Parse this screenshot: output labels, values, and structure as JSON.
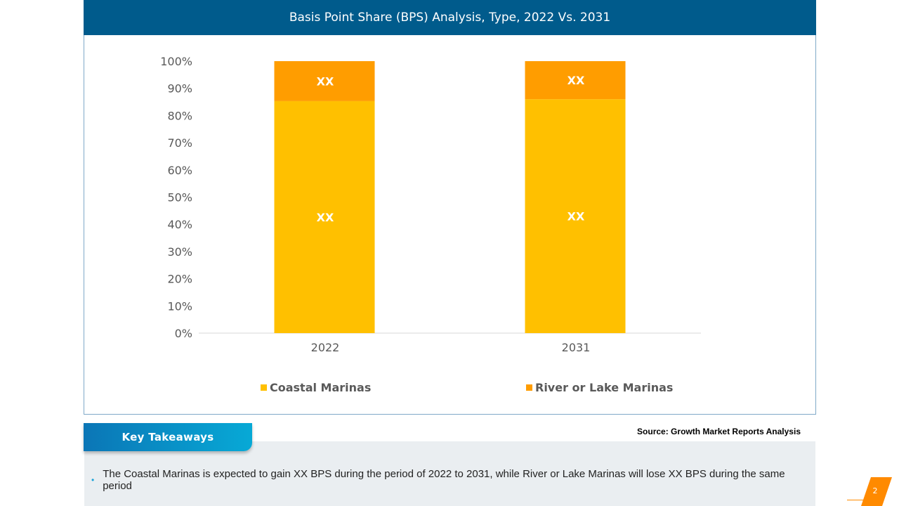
{
  "title": "Basis Point Share (BPS) Analysis, Type, 2022 Vs. 2031",
  "source": "Source: Growth Market Reports Analysis",
  "key_takeaways": {
    "label": "Key Takeaways",
    "bullets": [
      "The Coastal Marinas is expected to gain XX BPS during the period of 2022 to 2031, while River or Lake Marinas will lose XX BPS during the same period"
    ]
  },
  "page_number": "2",
  "colors": {
    "title_bar": "#005b8c",
    "coastal": "#ffc000",
    "river": "#ff9d00",
    "accent": "#ff8a00"
  },
  "chart_data": {
    "type": "bar",
    "stacked": true,
    "categories": [
      "2022",
      "2031"
    ],
    "series": [
      {
        "name": "Coastal Marinas",
        "values": [
          85.3,
          86
        ],
        "labels": [
          "XX",
          "XX"
        ],
        "color": "#ffc000"
      },
      {
        "name": "River or Lake Marinas",
        "values": [
          14.7,
          14
        ],
        "labels": [
          "XX",
          "XX"
        ],
        "color": "#ff9d00"
      }
    ],
    "ylim": [
      0,
      100
    ],
    "yticks": [
      "0%",
      "10%",
      "20%",
      "30%",
      "40%",
      "50%",
      "60%",
      "70%",
      "80%",
      "90%",
      "100%"
    ],
    "xlabel": "",
    "ylabel": "",
    "grid": false,
    "legend": "bottom"
  }
}
